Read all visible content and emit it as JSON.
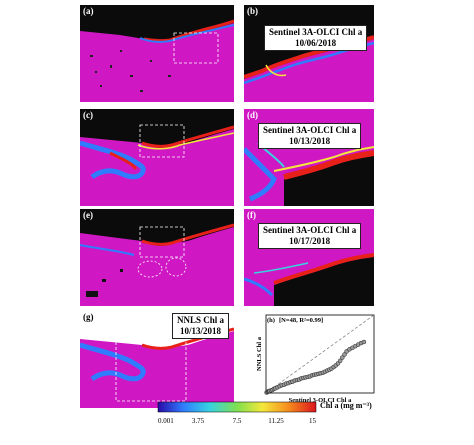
{
  "panels": [
    {
      "label": "(a)",
      "title": ""
    },
    {
      "label": "(b)",
      "title": "Sentinel 3A-OLCI Chl a",
      "date": "10/06/2018"
    },
    {
      "label": "(c)",
      "title": ""
    },
    {
      "label": "(d)",
      "title": "Sentinel 3A-OLCI Chl a",
      "date": "10/13/2018"
    },
    {
      "label": "(e)",
      "title": ""
    },
    {
      "label": "(f)",
      "title": "Sentinel 3A-OLCI Chl a",
      "date": "10/17/2018"
    },
    {
      "label": "(g)",
      "title": "NNLS Chl a",
      "date": "10/13/2018"
    },
    {
      "label": "(h)",
      "title": ""
    }
  ],
  "colors": {
    "ocean": "#cf18c4",
    "land": "#0b0b0b",
    "bloom_red": "#e8201a",
    "bloom_blue": "#2f7cff"
  },
  "colorbar": {
    "ticks": [
      "0.001",
      "3.75",
      "7.5",
      "11.25",
      "15"
    ],
    "label": "Chl a (mg m⁻³)",
    "stops": [
      "#2b0aa8",
      "#2f7cff",
      "#37d4e0",
      "#7fe04f",
      "#f3e83a",
      "#f78a1d",
      "#d9141d"
    ]
  },
  "chart_data": {
    "type": "scatter",
    "annotation": "[N=48, R²=0.99]",
    "xlabel": "Sentinel 3-OLCI Chl a",
    "ylabel": "NNLS Chl a",
    "xlim": [
      0,
      15
    ],
    "ylim": [
      0,
      15
    ],
    "identity_line": true,
    "x": [
      0.1,
      0.2,
      0.3,
      0.4,
      0.5,
      0.7,
      0.9,
      1.1,
      1.3,
      1.6,
      1.9,
      2.2,
      2.5,
      2.8,
      3.1,
      3.4,
      3.7,
      4.0,
      4.3,
      4.6,
      4.9,
      5.2,
      5.5,
      5.8,
      6.1,
      6.4,
      6.7,
      7.0,
      7.3,
      7.6,
      7.9,
      8.2,
      8.5,
      8.8,
      9.1,
      9.4,
      9.7,
      10.0,
      10.3,
      10.6,
      10.9,
      11.2,
      11.6,
      12.0,
      12.4,
      12.8,
      13.2,
      13.6
    ],
    "y": [
      0.1,
      0.2,
      0.3,
      0.3,
      0.4,
      0.5,
      0.6,
      0.8,
      0.9,
      1.1,
      1.3,
      1.5,
      1.6,
      1.8,
      1.9,
      2.1,
      2.2,
      2.4,
      2.5,
      2.6,
      2.8,
      2.9,
      3.0,
      3.1,
      3.2,
      3.4,
      3.5,
      3.6,
      3.7,
      3.8,
      3.9,
      4.1,
      4.3,
      4.5,
      4.7,
      5.0,
      5.3,
      5.7,
      6.2,
      6.8,
      7.4,
      8.0,
      8.4,
      8.7,
      9.0,
      9.3,
      9.6,
      9.8
    ]
  }
}
